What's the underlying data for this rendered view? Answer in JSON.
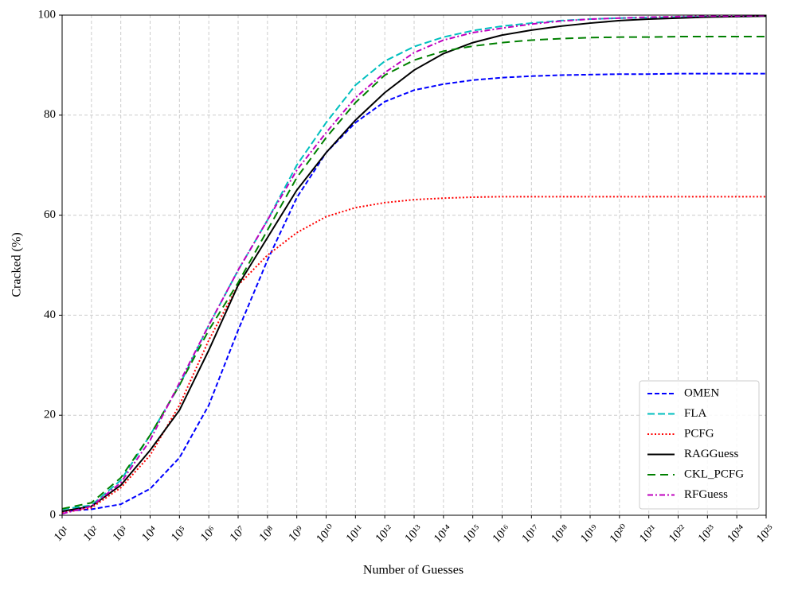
{
  "chart_data": {
    "type": "line",
    "xlabel": "Number of Guesses",
    "ylabel": "Cracked (%)",
    "xscale": "log",
    "grid": true,
    "legend": "lower right",
    "x": [
      10.0,
      100.0,
      1000.0,
      10000.0,
      100000.0,
      1000000.0,
      10000000.0,
      100000000.0,
      1000000000.0,
      10000000000.0,
      100000000000.0,
      1000000000000.0,
      10000000000000.0,
      100000000000000.0,
      1000000000000000.0,
      1e+16,
      1e+17,
      1e+18,
      1e+19,
      1e+20,
      1e+21,
      1e+22,
      1e+23,
      1e+24,
      1e+25
    ],
    "xlim": [
      10.0,
      1e+25
    ],
    "xticks": [
      {
        "value": 10.0,
        "label": "10¹"
      },
      {
        "value": 100.0,
        "label": "10²"
      },
      {
        "value": 1000.0,
        "label": "10³"
      },
      {
        "value": 10000.0,
        "label": "10⁴"
      },
      {
        "value": 100000.0,
        "label": "10⁵"
      },
      {
        "value": 1000000.0,
        "label": "10⁶"
      },
      {
        "value": 10000000.0,
        "label": "10⁷"
      },
      {
        "value": 100000000.0,
        "label": "10⁸"
      },
      {
        "value": 1000000000.0,
        "label": "10⁹"
      },
      {
        "value": 10000000000.0,
        "label": "10¹⁰"
      },
      {
        "value": 100000000000.0,
        "label": "10¹¹"
      },
      {
        "value": 1000000000000.0,
        "label": "10¹²"
      },
      {
        "value": 10000000000000.0,
        "label": "10¹³"
      },
      {
        "value": 100000000000000.0,
        "label": "10¹⁴"
      },
      {
        "value": 1000000000000000.0,
        "label": "10¹⁵"
      },
      {
        "value": 1e+16,
        "label": "10¹⁶"
      },
      {
        "value": 1e+17,
        "label": "10¹⁷"
      },
      {
        "value": 1e+18,
        "label": "10¹⁸"
      },
      {
        "value": 1e+19,
        "label": "10¹⁹"
      },
      {
        "value": 1e+20,
        "label": "10²⁰"
      },
      {
        "value": 1e+21,
        "label": "10²¹"
      },
      {
        "value": 1e+22,
        "label": "10²²"
      },
      {
        "value": 1e+23,
        "label": "10²³"
      },
      {
        "value": 1e+24,
        "label": "10²⁴"
      },
      {
        "value": 1e+25,
        "label": "10²⁵"
      }
    ],
    "ylim": [
      0,
      100
    ],
    "yticks": [
      0,
      20,
      40,
      60,
      80,
      100
    ],
    "series": [
      {
        "name": "OMEN",
        "color": "#0000ff",
        "linestyle": "dashed",
        "values": [
          0.8,
          1.2,
          2.2,
          5.3,
          11.5,
          22,
          37,
          51,
          63.5,
          72.5,
          78.5,
          82.7,
          85,
          86.2,
          87,
          87.5,
          87.8,
          88,
          88.1,
          88.2,
          88.2,
          88.3,
          88.3,
          88.3,
          88.3
        ]
      },
      {
        "name": "FLA",
        "color": "#00bfbf",
        "linestyle": "longdashed",
        "values": [
          1.2,
          2,
          7,
          16,
          26,
          38,
          49,
          59,
          70,
          78.5,
          86,
          90.8,
          93.7,
          95.6,
          96.9,
          97.8,
          98.4,
          98.9,
          99.2,
          99.4,
          99.5,
          99.6,
          99.7,
          99.7,
          99.8
        ]
      },
      {
        "name": "PCFG",
        "color": "#ff0000",
        "linestyle": "dotted",
        "values": [
          0.5,
          1.5,
          5.5,
          12,
          22,
          35,
          46,
          52,
          56.5,
          59.7,
          61.5,
          62.5,
          63.1,
          63.4,
          63.6,
          63.7,
          63.7,
          63.7,
          63.7,
          63.7,
          63.7,
          63.7,
          63.7,
          63.7,
          63.7
        ]
      },
      {
        "name": "RAGGuess",
        "color": "#000000",
        "linestyle": "solid",
        "values": [
          0.8,
          1.8,
          6,
          13,
          21,
          33,
          46,
          55.5,
          65,
          72.5,
          79,
          84.5,
          89,
          92.3,
          94.5,
          96,
          97,
          97.8,
          98.4,
          98.9,
          99.2,
          99.4,
          99.6,
          99.7,
          99.8
        ]
      },
      {
        "name": "CKL_PCFG",
        "color": "#008000",
        "linestyle": "loosedashed",
        "values": [
          1.3,
          2.5,
          7.5,
          16,
          26,
          37,
          46.5,
          57,
          67.5,
          75.5,
          82.5,
          88,
          91,
          92.8,
          93.8,
          94.5,
          95,
          95.3,
          95.5,
          95.6,
          95.6,
          95.7,
          95.7,
          95.7,
          95.7
        ]
      },
      {
        "name": "RFGuess",
        "color": "#bf00bf",
        "linestyle": "dashdot",
        "values": [
          0.3,
          1.8,
          6.5,
          15,
          26.5,
          38,
          49,
          59,
          69,
          76.5,
          83.5,
          88.5,
          92.5,
          95,
          96.5,
          97.4,
          98.2,
          98.8,
          99.2,
          99.4,
          99.6,
          99.7,
          99.8,
          99.8,
          99.9
        ]
      }
    ]
  }
}
